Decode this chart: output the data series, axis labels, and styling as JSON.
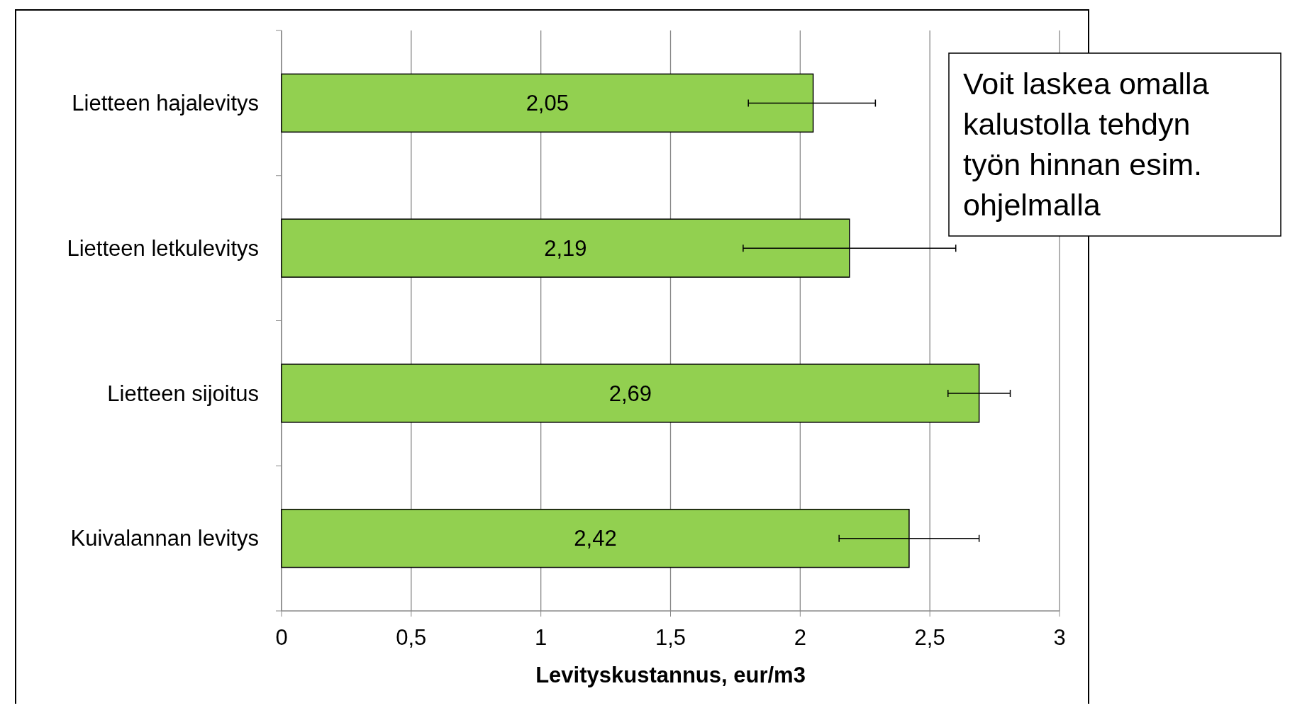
{
  "chart_data": {
    "type": "bar",
    "orientation": "horizontal",
    "xlabel": "Levityskustannus, eur/m3",
    "categories": [
      "Lietteen hajalevitys",
      "Lietteen letkulevitys",
      "Lietteen sijoitus",
      "Kuivalannan levitys"
    ],
    "values": [
      2.05,
      2.19,
      2.69,
      2.42
    ],
    "value_labels": [
      "2,05",
      "2,19",
      "2,69",
      "2,42"
    ],
    "errors": [
      [
        1.8,
        2.29
      ],
      [
        1.78,
        2.6
      ],
      [
        2.57,
        2.81
      ],
      [
        2.15,
        2.69
      ]
    ],
    "color": "#92d050",
    "xlim": [
      0,
      3
    ],
    "xticks": [
      0,
      {
        "value": 0.5,
        "label": "0,5"
      },
      1,
      {
        "value": 1.5,
        "label": "1,5"
      },
      2,
      {
        "value": 2.5,
        "label": "2,5"
      },
      3
    ],
    "grid": "x",
    "annotations": [
      "Voit laskea omalla kalustolla tehdyn työn hinnan esim. ohjelmalla"
    ]
  }
}
